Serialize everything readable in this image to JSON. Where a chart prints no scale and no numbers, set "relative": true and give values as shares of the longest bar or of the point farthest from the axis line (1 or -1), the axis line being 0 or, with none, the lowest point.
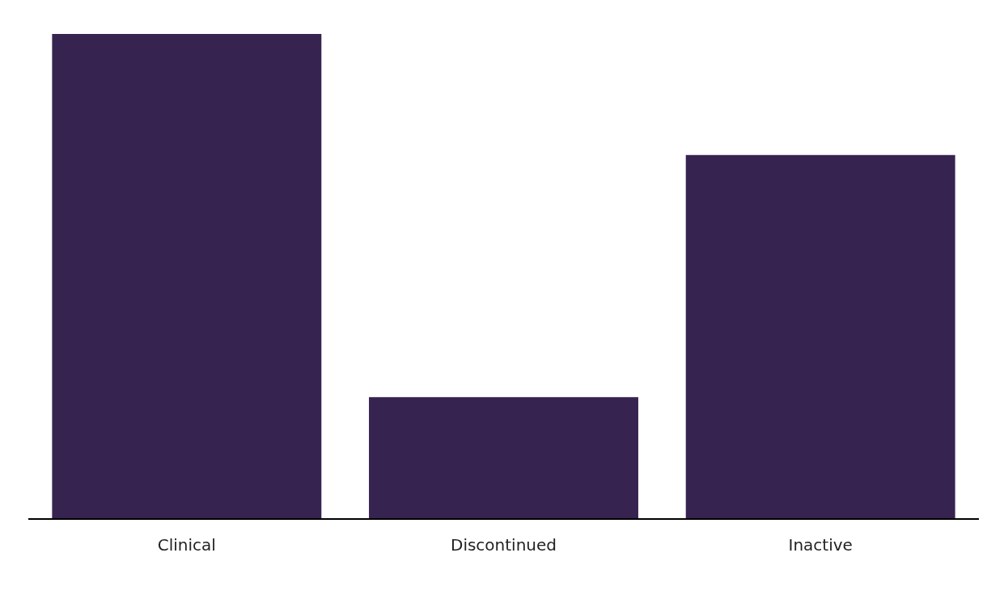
{
  "chart_data": {
    "type": "bar",
    "relative": true,
    "categories": [
      "Clinical",
      "Discontinued",
      "Inactive"
    ],
    "values": [
      1,
      0.25,
      0.75
    ],
    "color": "#36234f"
  }
}
